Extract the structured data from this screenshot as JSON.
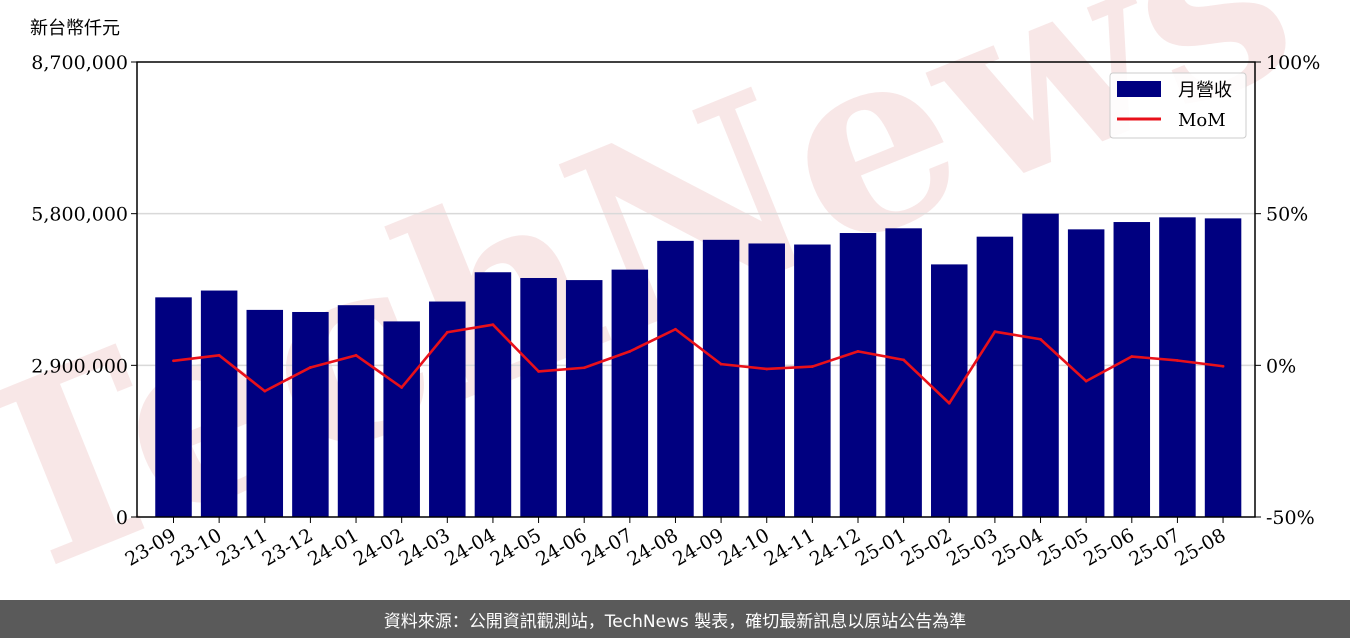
{
  "chart_data": {
    "type": "bar",
    "unit_label": "新台幣仟元",
    "categories": [
      "23-09",
      "23-10",
      "23-11",
      "23-12",
      "24-01",
      "24-02",
      "24-03",
      "24-04",
      "24-05",
      "24-06",
      "24-07",
      "24-08",
      "24-09",
      "24-10",
      "24-11",
      "24-12",
      "25-01",
      "25-02",
      "25-03",
      "25-04",
      "25-05",
      "25-06",
      "25-07",
      "25-08"
    ],
    "series": [
      {
        "name": "月營收",
        "axis": "left",
        "type": "bar",
        "color": "#000080",
        "values": [
          4200000,
          4330000,
          3960000,
          3920000,
          4050000,
          3740000,
          4120000,
          4680000,
          4570000,
          4530000,
          4730000,
          5280000,
          5300000,
          5230000,
          5210000,
          5430000,
          5520000,
          4830000,
          5360000,
          5800000,
          5500000,
          5640000,
          5730000,
          5710000
        ]
      },
      {
        "name": "MoM",
        "axis": "right",
        "type": "line",
        "color": "#e8101a",
        "values": [
          1.5,
          3.3,
          -8.5,
          -0.7,
          3.3,
          -7.3,
          10.9,
          13.4,
          -2.0,
          -0.8,
          4.6,
          11.9,
          0.4,
          -1.2,
          -0.4,
          4.6,
          1.8,
          -12.5,
          11.1,
          8.6,
          -5.2,
          2.9,
          1.6,
          -0.3
        ]
      }
    ],
    "ylim_left": [
      0,
      8700000
    ],
    "ylim_right": [
      -50,
      100
    ],
    "yticks_left": [
      "0",
      "2,900,000",
      "5,800,000",
      "8,700,000"
    ],
    "yticks_right": [
      "-50%",
      "0%",
      "50%",
      "100%"
    ],
    "grid": true,
    "legend_position": "top-right",
    "watermark": "TechNews"
  },
  "footer": {
    "source_text": "資料來源：公開資訊觀測站，TechNews 製表，確切最新訊息以原站公告為準"
  }
}
